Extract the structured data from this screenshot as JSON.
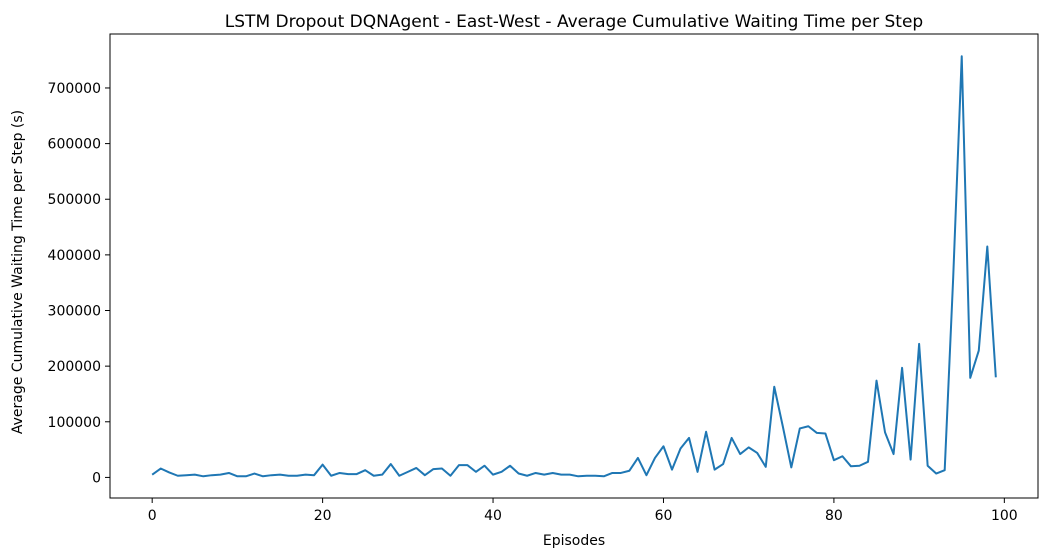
{
  "chart_data": {
    "type": "line",
    "title": "LSTM Dropout DQNAgent - East-West - Average Cumulative Waiting Time per Step",
    "xlabel": "Episodes",
    "ylabel": "Average Cumulative Waiting Time per Step (s)",
    "xlim": [
      -4.95,
      103.95
    ],
    "ylim": [
      -37000,
      797000
    ],
    "xticks": [
      0,
      20,
      40,
      60,
      80,
      100
    ],
    "yticks": [
      0,
      100000,
      200000,
      300000,
      400000,
      500000,
      600000,
      700000
    ],
    "grid": false,
    "line_color": "#1f77b4",
    "series": [
      {
        "x": [
          0,
          1,
          2,
          3,
          4,
          5,
          6,
          7,
          8,
          9,
          10,
          11,
          12,
          13,
          14,
          15,
          16,
          17,
          18,
          19,
          20,
          21,
          22,
          23,
          24,
          25,
          26,
          27,
          28,
          29,
          30,
          31,
          32,
          33,
          34,
          35,
          36,
          37,
          38,
          39,
          40,
          41,
          42,
          43,
          44,
          45,
          46,
          47,
          48,
          49,
          50,
          51,
          52,
          53,
          54,
          55,
          56,
          57,
          58,
          59,
          60,
          61,
          62,
          63,
          64,
          65,
          66,
          67,
          68,
          69,
          70,
          71,
          72,
          73,
          74,
          75,
          76,
          77,
          78,
          79,
          80,
          81,
          82,
          83,
          84,
          85,
          86,
          87,
          88,
          89,
          90,
          91,
          92,
          93,
          94,
          95,
          96,
          97,
          98,
          99
        ],
        "values": [
          5000,
          16000,
          9000,
          3000,
          4000,
          5000,
          2000,
          4000,
          5000,
          8000,
          2000,
          2000,
          7000,
          2000,
          4000,
          5000,
          3000,
          3000,
          5000,
          4000,
          23000,
          3000,
          8000,
          6000,
          6000,
          13000,
          3000,
          5000,
          24000,
          3000,
          10000,
          17000,
          4000,
          15000,
          16000,
          3000,
          22000,
          22000,
          10000,
          21000,
          5000,
          10000,
          21000,
          7000,
          3000,
          8000,
          5000,
          8000,
          5000,
          5000,
          2000,
          3000,
          3000,
          2000,
          8000,
          8000,
          12000,
          35000,
          4000,
          35000,
          56000,
          14000,
          52000,
          71000,
          10000,
          82000,
          14000,
          24000,
          71000,
          42000,
          54000,
          44000,
          19000,
          163000,
          92000,
          18000,
          88000,
          92000,
          80000,
          79000,
          31000,
          38000,
          20000,
          21000,
          28000,
          174000,
          81000,
          42000,
          197000,
          32000,
          240000,
          21000,
          7000,
          13000,
          360000,
          757000,
          179000,
          228000,
          415000,
          180000
        ]
      }
    ]
  }
}
